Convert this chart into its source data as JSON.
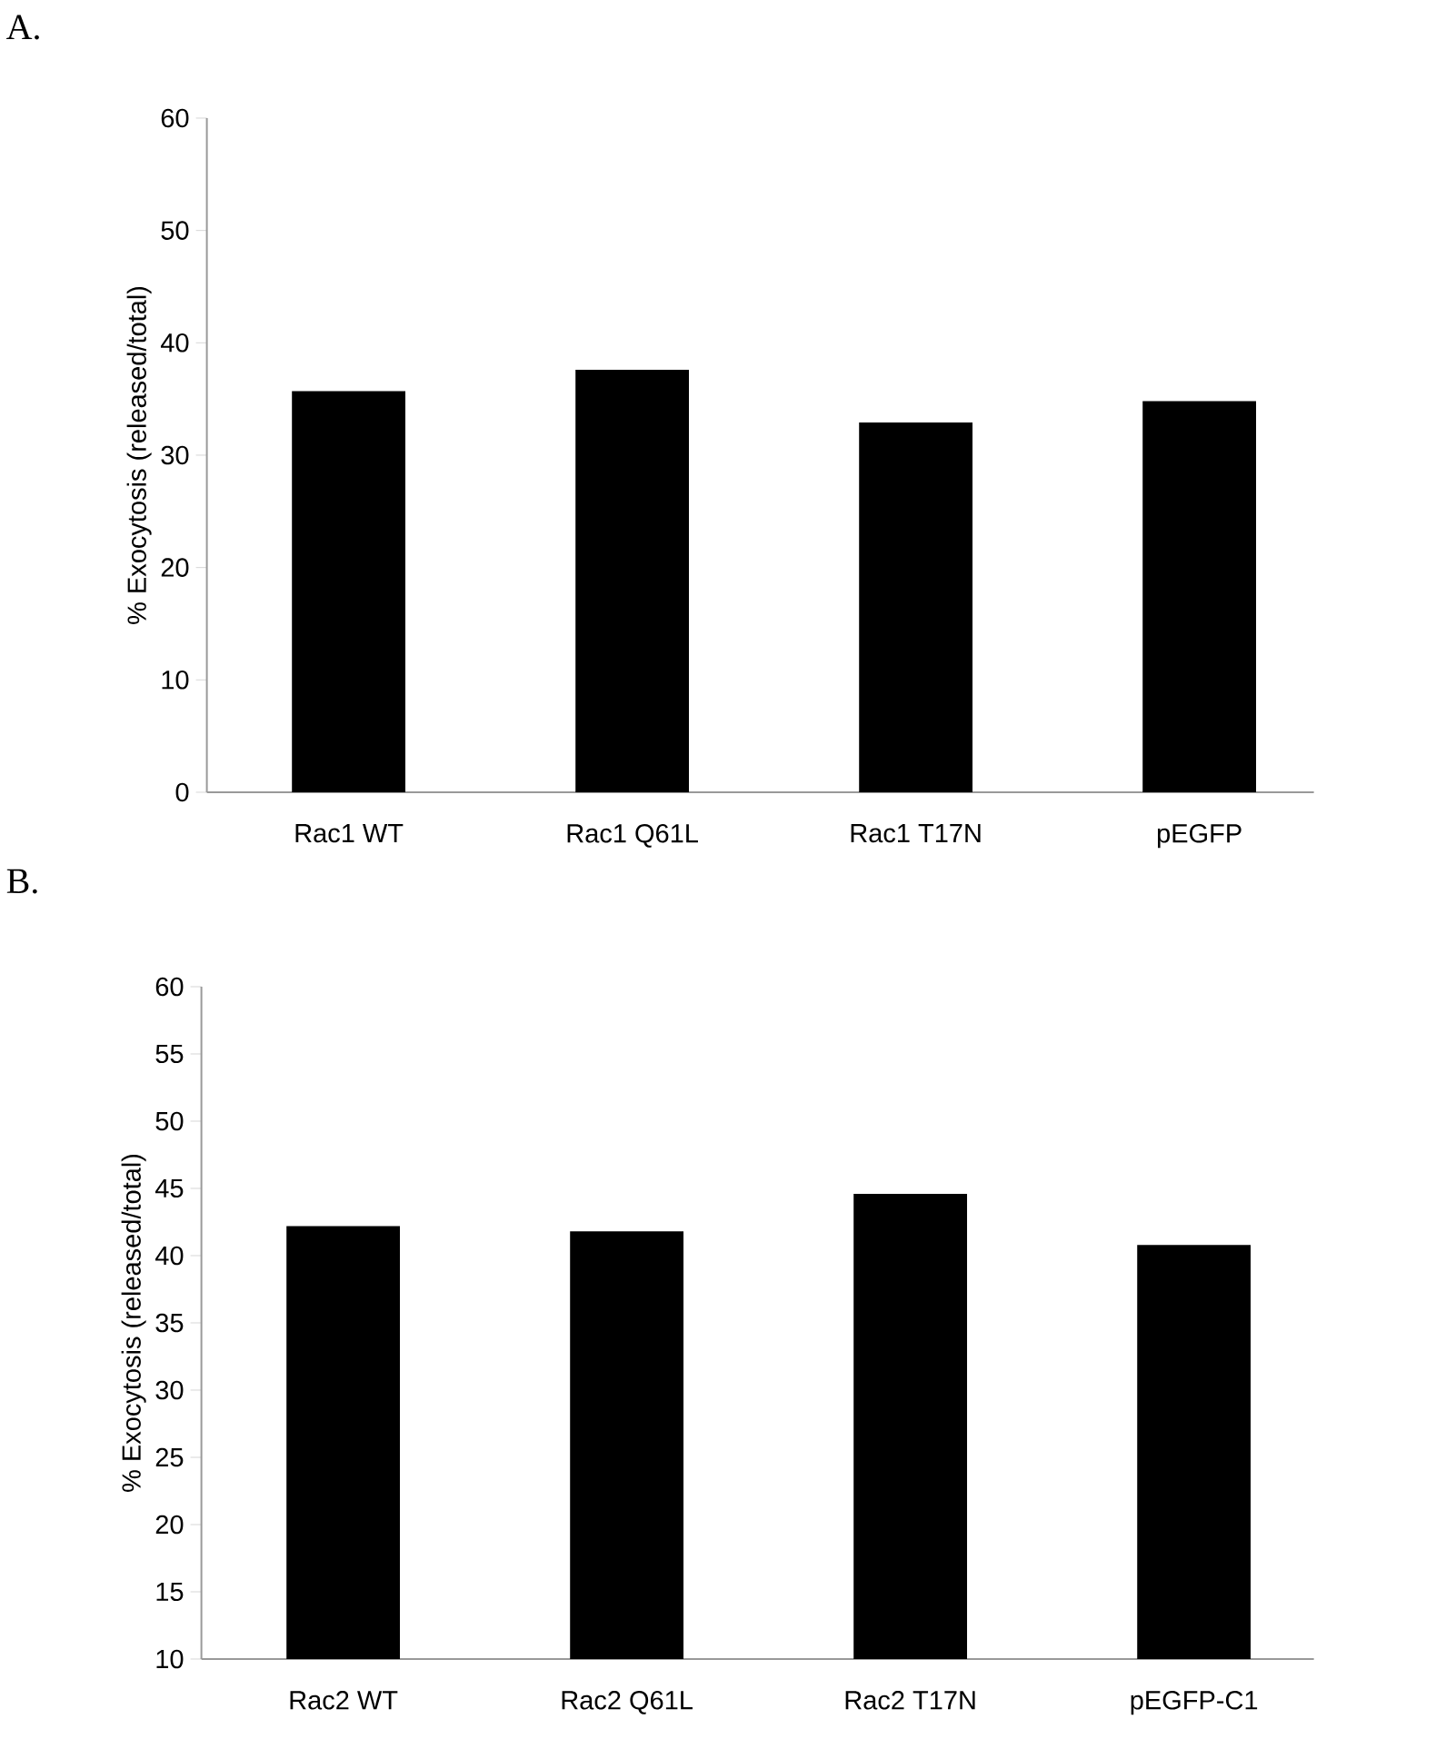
{
  "chart_data": [
    {
      "type": "bar",
      "title": "A.",
      "ylabel": "% Exocytosis (released/total)",
      "categories": [
        "Rac1 WT",
        "Rac1 Q61L",
        "Rac1 T17N",
        "pEGFP"
      ],
      "values": [
        35.7,
        37.6,
        32.9,
        34.8
      ],
      "color": "#000000",
      "ylim": [
        0,
        60
      ],
      "yticks": [
        0,
        10,
        20,
        30,
        40,
        50,
        60
      ],
      "grid": false
    },
    {
      "type": "bar",
      "title": "B.",
      "ylabel": "% Exocytosis (released/total)",
      "categories": [
        "Rac2 WT",
        "Rac2 Q61L",
        "Rac2 T17N",
        "pEGFP-C1"
      ],
      "values": [
        42.2,
        41.8,
        44.6,
        40.8
      ],
      "color": "#000000",
      "ylim": [
        10,
        60
      ],
      "yticks": [
        10,
        15,
        20,
        25,
        30,
        35,
        40,
        45,
        50,
        55,
        60
      ],
      "grid": false
    }
  ]
}
